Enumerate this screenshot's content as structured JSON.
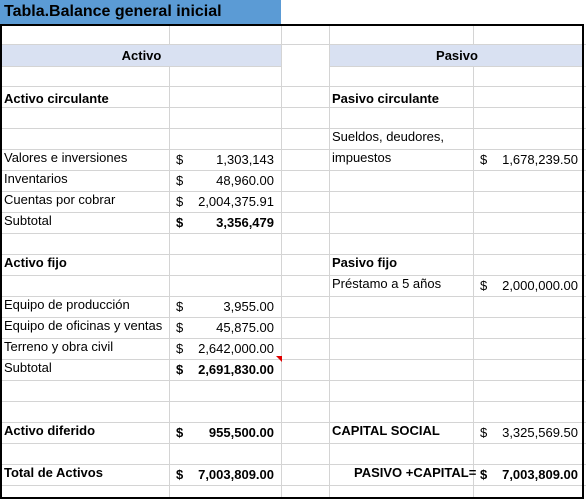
{
  "title": "Tabla.Balance general inicial",
  "headers": {
    "activo": "Activo",
    "pasivo": "Pasivo"
  },
  "activo": {
    "circulante_title": "Activo circulante",
    "valores": {
      "label": "Valores e inversiones",
      "cur": "$",
      "value": "1,303,143"
    },
    "inventarios": {
      "label": "Inventarios",
      "cur": "$",
      "value": "48,960.00"
    },
    "cuentas": {
      "label": "Cuentas por cobrar",
      "cur": "$",
      "value": "2,004,375.91"
    },
    "subtotal1": {
      "label": "Subtotal",
      "cur": "$",
      "value": "3,356,479"
    },
    "fijo_title": "Activo fijo",
    "equipo_prod": {
      "label": "Equipo de producción",
      "cur": "$",
      "value": "3,955.00"
    },
    "equipo_ofic": {
      "label": "Equipo de oficinas y ventas",
      "cur": "$",
      "value": "45,875.00"
    },
    "terreno": {
      "label": "Terreno y obra civil",
      "cur": "$",
      "value": "2,642,000.00"
    },
    "subtotal2": {
      "label": "Subtotal",
      "cur": "$",
      "value": "2,691,830.00"
    },
    "diferido": {
      "label": "Activo diferido",
      "cur": "$",
      "value": "955,500.00"
    },
    "total": {
      "label": "Total de Activos",
      "cur": "$",
      "value": "7,003,809.00"
    }
  },
  "pasivo": {
    "circulante_title": "Pasivo circulante",
    "sueldos": {
      "label_line1": "Sueldos, deudores,",
      "label_line2": "impuestos",
      "cur": "$",
      "value": "1,678,239.50"
    },
    "fijo_title": "Pasivo fijo",
    "prestamo": {
      "label": "Préstamo a 5 años",
      "cur": "$",
      "value": "2,000,000.00"
    },
    "capital": {
      "label": "CAPITAL SOCIAL",
      "cur": "$",
      "value": "3,325,569.50"
    },
    "total": {
      "label": "PASIVO +CAPITAL=",
      "cur": "$",
      "value": "7,003,809.00"
    }
  }
}
